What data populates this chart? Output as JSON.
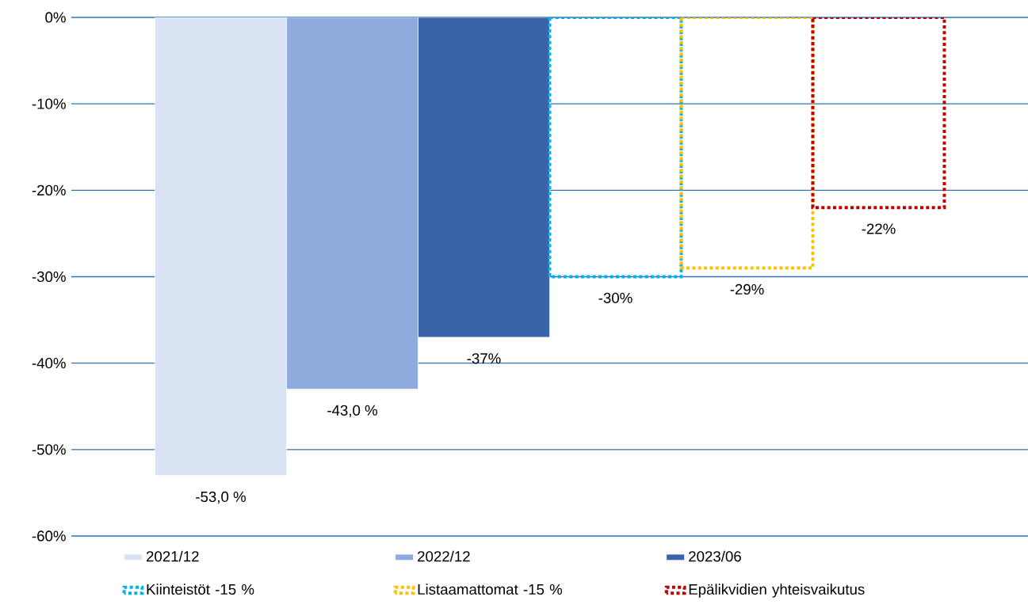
{
  "chart_data": {
    "type": "bar",
    "categories": [
      null
    ],
    "series": [
      {
        "name": "2021/12",
        "color": "#dae3f3",
        "values": [
          -53.0
        ],
        "value_labels": [
          "-53,0 %"
        ]
      },
      {
        "name": "2022/12",
        "color": "#8faadc",
        "values": [
          -43.0
        ],
        "value_labels": [
          "-43,0 %"
        ]
      },
      {
        "name": "2023/06",
        "color": "#3a63a8",
        "values": [
          -37
        ],
        "value_labels": [
          "-37%"
        ]
      },
      {
        "name": "Kiinteistöt -15 %",
        "color": "#00b0f0",
        "values": [
          -30
        ],
        "value_labels": [
          "-30%"
        ],
        "line_style": "dotted"
      },
      {
        "name": "Listaamattomat -15 %",
        "color": "#ffc000",
        "values": [
          -29
        ],
        "value_labels": [
          "-29%"
        ],
        "line_style": "dotted"
      },
      {
        "name": "Epälikvidien yhteisvaikutus",
        "color": "#c00000",
        "values": [
          -22
        ],
        "value_labels": [
          "-22%"
        ],
        "line_style": "dotted"
      }
    ],
    "ylim": [
      -60,
      0
    ],
    "yticks": [
      {
        "value": -60,
        "label": "-60%"
      },
      {
        "value": -50,
        "label": "-50%"
      },
      {
        "value": -40,
        "label": "-40%"
      },
      {
        "value": -30,
        "label": "-30%"
      },
      {
        "value": -20,
        "label": "-20%"
      },
      {
        "value": -10,
        "label": "-10%"
      },
      {
        "value": 0,
        "label": "0%"
      }
    ],
    "grid": "y",
    "legend": "bottom"
  }
}
